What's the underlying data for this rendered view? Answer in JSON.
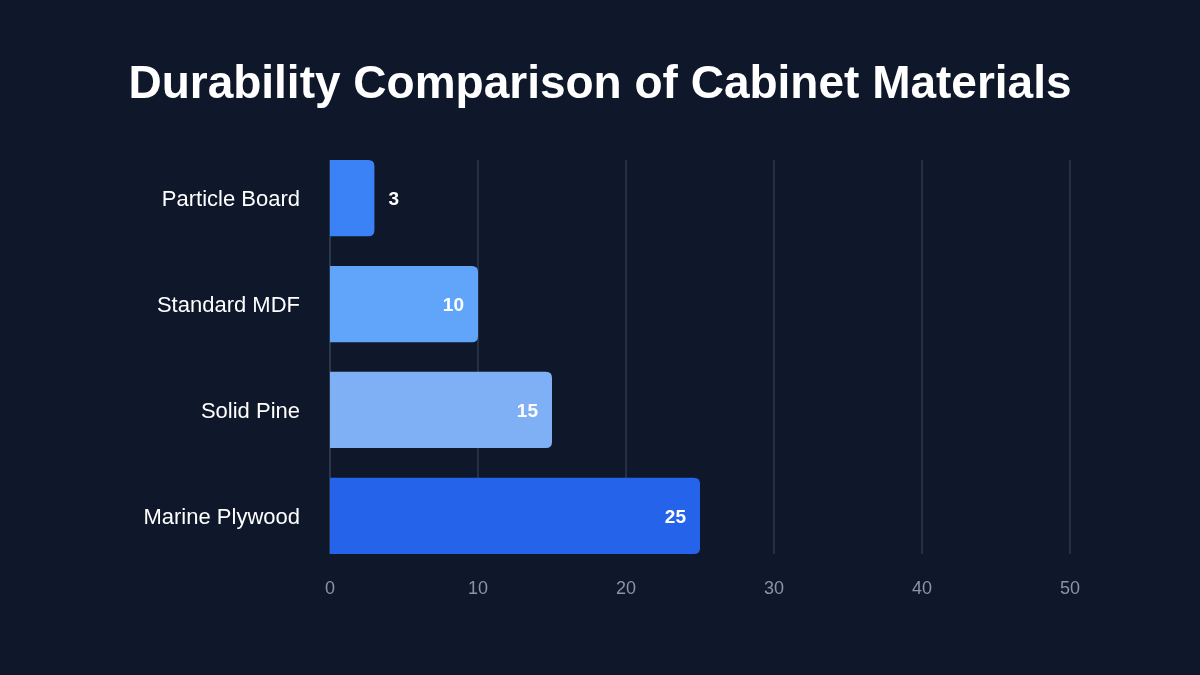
{
  "chart_data": {
    "type": "bar",
    "orientation": "horizontal",
    "title": "Durability Comparison of Cabinet Materials",
    "categories": [
      "Particle Board",
      "Standard MDF",
      "Solid Pine",
      "Marine Plywood"
    ],
    "values": [
      3,
      10,
      15,
      25
    ],
    "colors": [
      "#3b82f6",
      "#60a5fa",
      "#7fb0f5",
      "#2563eb"
    ],
    "xlim": [
      0,
      50
    ],
    "xticks": [
      0,
      10,
      20,
      30,
      40,
      50
    ],
    "grid": "x",
    "data_labels": true
  }
}
